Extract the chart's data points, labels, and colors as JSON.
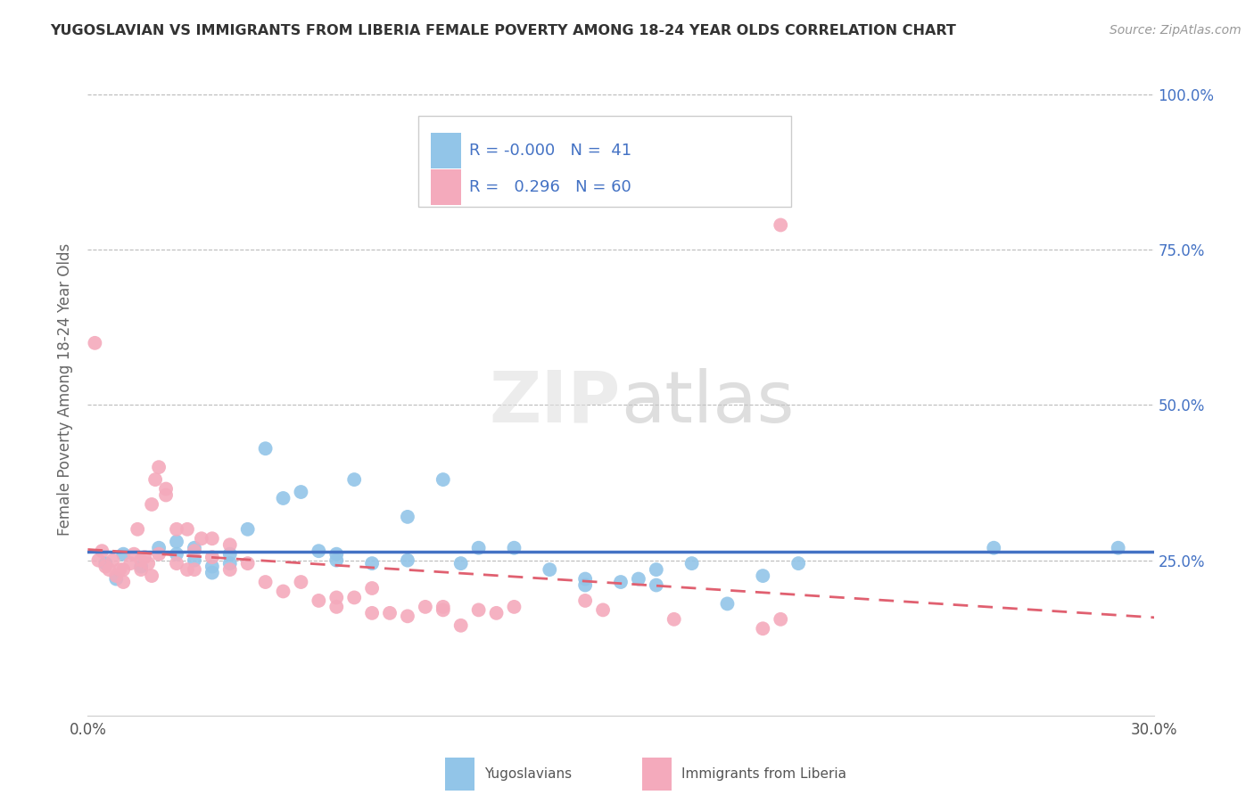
{
  "title": "YUGOSLAVIAN VS IMMIGRANTS FROM LIBERIA FEMALE POVERTY AMONG 18-24 YEAR OLDS CORRELATION CHART",
  "source": "Source: ZipAtlas.com",
  "ylabel": "Female Poverty Among 18-24 Year Olds",
  "legend_label1": "Yugoslavians",
  "legend_label2": "Immigrants from Liberia",
  "R1": "-0.000",
  "N1": 41,
  "R2": "0.296",
  "N2": 60,
  "color_blue": "#92C5E8",
  "color_pink": "#F4AABC",
  "color_blue_line": "#4472C4",
  "color_pink_line": "#E06070",
  "background": "#FFFFFF",
  "grid_color": "#BBBBBB",
  "xlim": [
    0.0,
    0.3
  ],
  "ylim": [
    0.0,
    1.05
  ],
  "blue_scatter": [
    [
      0.005,
      0.245
    ],
    [
      0.008,
      0.22
    ],
    [
      0.01,
      0.26
    ],
    [
      0.015,
      0.24
    ],
    [
      0.02,
      0.27
    ],
    [
      0.025,
      0.28
    ],
    [
      0.025,
      0.26
    ],
    [
      0.03,
      0.25
    ],
    [
      0.03,
      0.27
    ],
    [
      0.035,
      0.24
    ],
    [
      0.035,
      0.23
    ],
    [
      0.04,
      0.26
    ],
    [
      0.04,
      0.245
    ],
    [
      0.045,
      0.3
    ],
    [
      0.05,
      0.43
    ],
    [
      0.055,
      0.35
    ],
    [
      0.06,
      0.36
    ],
    [
      0.065,
      0.265
    ],
    [
      0.07,
      0.26
    ],
    [
      0.07,
      0.25
    ],
    [
      0.075,
      0.38
    ],
    [
      0.08,
      0.245
    ],
    [
      0.09,
      0.25
    ],
    [
      0.09,
      0.32
    ],
    [
      0.1,
      0.38
    ],
    [
      0.105,
      0.245
    ],
    [
      0.11,
      0.27
    ],
    [
      0.12,
      0.27
    ],
    [
      0.13,
      0.235
    ],
    [
      0.14,
      0.22
    ],
    [
      0.14,
      0.21
    ],
    [
      0.15,
      0.215
    ],
    [
      0.155,
      0.22
    ],
    [
      0.16,
      0.235
    ],
    [
      0.16,
      0.21
    ],
    [
      0.17,
      0.245
    ],
    [
      0.18,
      0.18
    ],
    [
      0.19,
      0.225
    ],
    [
      0.2,
      0.245
    ],
    [
      0.255,
      0.27
    ],
    [
      0.29,
      0.27
    ]
  ],
  "pink_scatter": [
    [
      0.002,
      0.6
    ],
    [
      0.003,
      0.25
    ],
    [
      0.004,
      0.265
    ],
    [
      0.005,
      0.24
    ],
    [
      0.006,
      0.235
    ],
    [
      0.007,
      0.25
    ],
    [
      0.008,
      0.225
    ],
    [
      0.009,
      0.235
    ],
    [
      0.01,
      0.215
    ],
    [
      0.01,
      0.235
    ],
    [
      0.012,
      0.245
    ],
    [
      0.013,
      0.26
    ],
    [
      0.014,
      0.3
    ],
    [
      0.015,
      0.25
    ],
    [
      0.015,
      0.235
    ],
    [
      0.016,
      0.255
    ],
    [
      0.017,
      0.245
    ],
    [
      0.018,
      0.225
    ],
    [
      0.018,
      0.34
    ],
    [
      0.019,
      0.38
    ],
    [
      0.02,
      0.4
    ],
    [
      0.02,
      0.26
    ],
    [
      0.022,
      0.355
    ],
    [
      0.022,
      0.365
    ],
    [
      0.025,
      0.3
    ],
    [
      0.025,
      0.245
    ],
    [
      0.028,
      0.235
    ],
    [
      0.028,
      0.3
    ],
    [
      0.03,
      0.235
    ],
    [
      0.03,
      0.265
    ],
    [
      0.032,
      0.285
    ],
    [
      0.035,
      0.285
    ],
    [
      0.035,
      0.255
    ],
    [
      0.04,
      0.275
    ],
    [
      0.04,
      0.235
    ],
    [
      0.045,
      0.245
    ],
    [
      0.05,
      0.215
    ],
    [
      0.055,
      0.2
    ],
    [
      0.06,
      0.215
    ],
    [
      0.065,
      0.185
    ],
    [
      0.07,
      0.19
    ],
    [
      0.07,
      0.175
    ],
    [
      0.075,
      0.19
    ],
    [
      0.08,
      0.205
    ],
    [
      0.08,
      0.165
    ],
    [
      0.085,
      0.165
    ],
    [
      0.09,
      0.16
    ],
    [
      0.095,
      0.175
    ],
    [
      0.1,
      0.17
    ],
    [
      0.1,
      0.175
    ],
    [
      0.105,
      0.145
    ],
    [
      0.11,
      0.17
    ],
    [
      0.115,
      0.165
    ],
    [
      0.12,
      0.175
    ],
    [
      0.14,
      0.185
    ],
    [
      0.145,
      0.17
    ],
    [
      0.165,
      0.155
    ],
    [
      0.19,
      0.14
    ],
    [
      0.195,
      0.79
    ],
    [
      0.195,
      0.155
    ]
  ]
}
